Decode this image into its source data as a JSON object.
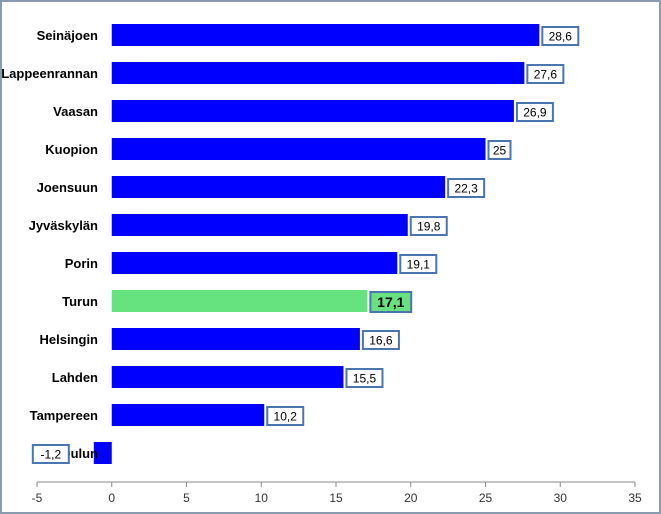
{
  "chart_data": {
    "type": "bar",
    "orientation": "horizontal",
    "title": "",
    "xlabel": "",
    "ylabel": "",
    "categories": [
      "Seinäjoen",
      "Lappeenrannan",
      "Vaasan",
      "Kuopion",
      "Joensuun",
      "Jyväskylän",
      "Porin",
      "Turun",
      "Helsingin",
      "Lahden",
      "Tampereen",
      "Oulun"
    ],
    "values": [
      28.6,
      27.6,
      26.9,
      25,
      22.3,
      19.8,
      19.1,
      17.1,
      16.6,
      15.5,
      10.2,
      -1.2
    ],
    "value_labels": [
      "28,6",
      "27,6",
      "26,9",
      "25",
      "22,3",
      "19,8",
      "19,1",
      "17,1",
      "16,6",
      "15,5",
      "10,2",
      "-1,2"
    ],
    "highlight_index": 7,
    "xlim": [
      -5,
      35
    ],
    "xticks": [
      -5,
      0,
      5,
      10,
      15,
      20,
      25,
      30,
      35
    ],
    "xtick_labels": [
      "-5",
      "0",
      "5",
      "10",
      "15",
      "20",
      "25",
      "30",
      "35"
    ],
    "grid": false,
    "legend": "none",
    "colors": {
      "bar": "#0000ff",
      "highlight_bar": "#66e27e",
      "label_border": "#4a76b0",
      "axis": "#888888"
    }
  }
}
